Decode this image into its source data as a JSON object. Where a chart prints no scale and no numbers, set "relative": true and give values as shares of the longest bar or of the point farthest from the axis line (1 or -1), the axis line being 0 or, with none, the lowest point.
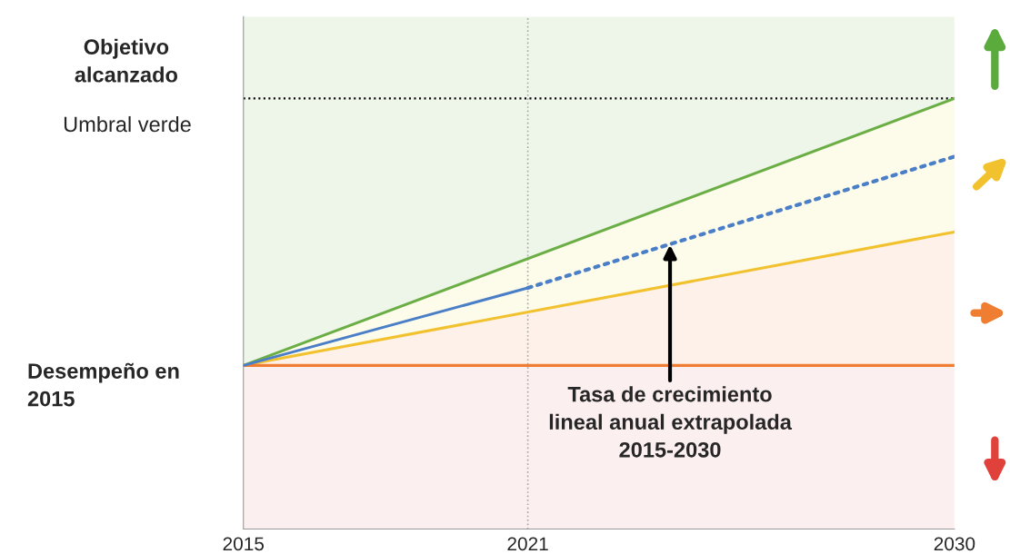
{
  "chart_data": {
    "type": "line",
    "relative": true,
    "grid": false,
    "xlim": [
      2015,
      2030
    ],
    "xticks": [
      2015,
      2021,
      2030
    ],
    "series": [
      {
        "color": "#6aae45",
        "x": [
          2015,
          2030
        ],
        "values": [
          0.38,
          1.0
        ],
        "line_style": "solid"
      },
      {
        "color": "#f2c12e",
        "x": [
          2015,
          2030
        ],
        "values": [
          0.38,
          0.69
        ],
        "line_style": "solid"
      },
      {
        "color": "#ef7d32",
        "x": [
          2015,
          2030
        ],
        "values": [
          0.38,
          0.38
        ],
        "line_style": "solid"
      },
      {
        "color": "#4a7fc8",
        "x": [
          2015,
          2021
        ],
        "values": [
          0.38,
          0.56
        ],
        "line_style": "solid"
      },
      {
        "color": "#4a7fc8",
        "x": [
          2021,
          2030
        ],
        "values": [
          0.56,
          0.865
        ],
        "line_style": "dotted"
      }
    ],
    "bands": [
      {
        "axis": "y",
        "from": 1.0,
        "to": 1.19,
        "color": "#eef6ea"
      }
    ],
    "ref_lines": [
      {
        "axis": "y",
        "value": 1.0,
        "label": "Umbral verde",
        "color": "#000000",
        "line_style": "dotted"
      },
      {
        "axis": "x",
        "value": 2021,
        "color": "#aaaaaa",
        "line_style": "dotted"
      }
    ],
    "annotations": [
      "Objetivo\nalcanzado",
      "Desempeño en\n2015",
      {
        "text": "Tasa de crecimiento\nlineal anual extrapolada\n2015-2030",
        "x": 2024,
        "y": 0.66
      }
    ]
  }
}
